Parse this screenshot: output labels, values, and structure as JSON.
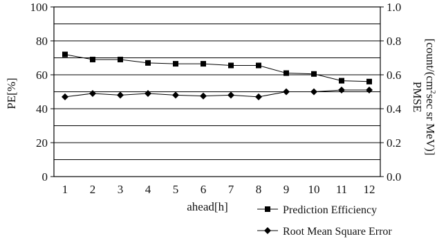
{
  "chart_data": {
    "type": "line",
    "title": "",
    "xlabel": "ahead[h]",
    "ylabel_left": "PE[%]",
    "ylabel_right_line1": "PMSE",
    "ylabel_right_line2_pre": "[count/(cm",
    "ylabel_right_sup": "2",
    "ylabel_right_line2_post": "sec sr MeV)]",
    "x": [
      1,
      2,
      3,
      4,
      5,
      6,
      7,
      8,
      9,
      10,
      11,
      12
    ],
    "xlim": [
      0.6,
      12.4
    ],
    "ylim_left": [
      0,
      100
    ],
    "ylim_right": [
      0.0,
      1.0
    ],
    "left_ticks": [
      "0",
      "20",
      "40",
      "60",
      "80",
      "100"
    ],
    "right_ticks": [
      "0.0",
      "0.2",
      "0.4",
      "0.6",
      "0.8",
      "1.0"
    ],
    "grid": "horizontal every 10",
    "legend_position": "bottom-right",
    "series": [
      {
        "name": "Prediction Efficiency",
        "axis": "left",
        "marker": "square",
        "values": [
          72,
          69,
          69,
          67,
          66.5,
          66.5,
          65.5,
          65.5,
          61,
          60.5,
          56.5,
          56
        ]
      },
      {
        "name": "Root Mean Square Error",
        "axis": "right",
        "marker": "diamond",
        "values": [
          0.47,
          0.49,
          0.48,
          0.49,
          0.48,
          0.475,
          0.48,
          0.47,
          0.5,
          0.5,
          0.51,
          0.51
        ]
      }
    ]
  }
}
